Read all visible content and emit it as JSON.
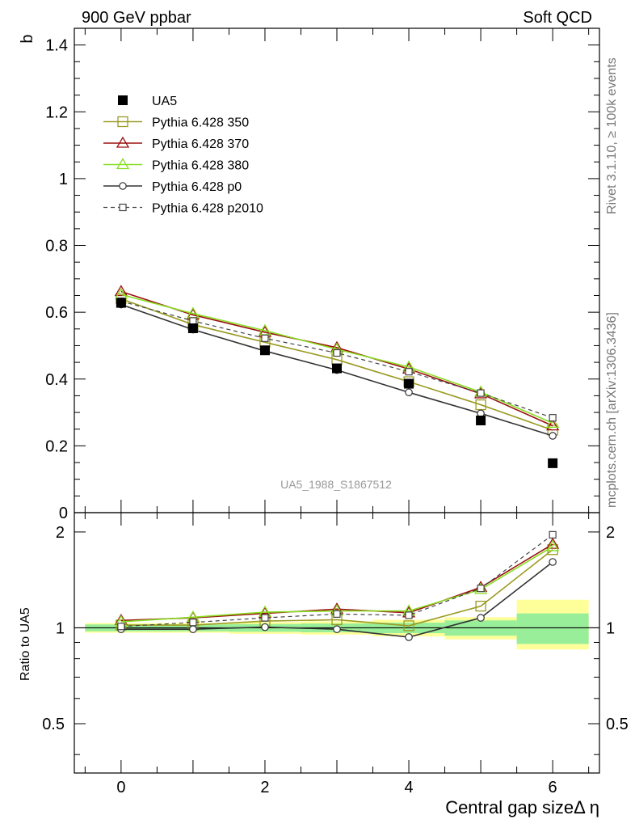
{
  "header": {
    "left": "900 GeV ppbar",
    "right": "Soft QCD"
  },
  "side": {
    "rivet": "Rivet 3.1.10, ≥ 100k events",
    "source": "mcplots.cern.ch [arXiv:1306.3436]"
  },
  "chart_data": [
    {
      "type": "line",
      "panel": "main",
      "ylabel": "b",
      "xlabel": "Central gap sizeΔ η",
      "watermark": "UA5_1988_S1867512",
      "xlim": [
        -0.65,
        6.65
      ],
      "ylim": [
        0,
        1.45
      ],
      "yticks": [
        0,
        0.2,
        0.4,
        0.6,
        0.8,
        1,
        1.2,
        1.4
      ],
      "ytick_labels": [
        "0",
        "0.2",
        "0.4",
        "0.6",
        "0.8",
        "1",
        "1.2",
        "1.4"
      ],
      "x": [
        0,
        1,
        2,
        3,
        4,
        5,
        6
      ],
      "legend_position": "top-left",
      "series": [
        {
          "name": "UA5",
          "color": "#000000",
          "marker": "filled-square",
          "values": [
            0.628,
            0.552,
            0.486,
            0.432,
            0.386,
            0.276,
            0.148
          ]
        },
        {
          "name": "Pythia 6.428 350",
          "color": "#9a9a22",
          "marker": "open-square",
          "values": [
            0.64,
            0.563,
            0.51,
            0.458,
            0.392,
            0.323,
            0.247
          ]
        },
        {
          "name": "Pythia 6.428 370",
          "color": "#9b1010",
          "marker": "open-triangle",
          "values": [
            0.662,
            0.592,
            0.54,
            0.494,
            0.43,
            0.356,
            0.26
          ]
        },
        {
          "name": "Pythia 6.428 380",
          "color": "#88dd22",
          "marker": "open-triangle",
          "values": [
            0.653,
            0.596,
            0.545,
            0.489,
            0.436,
            0.361,
            0.268
          ]
        },
        {
          "name": "Pythia 6.428 p0",
          "color": "#333333",
          "marker": "open-circle",
          "values": [
            0.623,
            0.548,
            0.484,
            0.427,
            0.36,
            0.297,
            0.23
          ]
        },
        {
          "name": "Pythia 6.428 p2010",
          "color": "#444444",
          "marker": "open-square-dashed",
          "values": [
            0.633,
            0.574,
            0.522,
            0.478,
            0.422,
            0.358,
            0.284
          ]
        }
      ]
    },
    {
      "type": "line",
      "panel": "ratio",
      "ylabel": "Ratio to UA5",
      "xlabel": "Central gap sizeΔ η",
      "xlim": [
        -0.65,
        6.65
      ],
      "ylim": [
        0.35,
        2.3
      ],
      "yticks": [
        0.5,
        1,
        2
      ],
      "ytick_labels": [
        "0.5",
        "1",
        "2"
      ],
      "xticks": [
        0,
        2,
        4,
        6
      ],
      "xtick_labels": [
        "0",
        "2",
        "4",
        "6"
      ],
      "x": [
        0,
        1,
        2,
        3,
        4,
        5,
        6
      ],
      "bands": {
        "stat_color": "#99ee99",
        "total_color": "#ffff99",
        "stat": [
          [
            0.975,
            1.025
          ],
          [
            0.975,
            1.025
          ],
          [
            0.972,
            1.028
          ],
          [
            0.968,
            1.032
          ],
          [
            0.962,
            1.038
          ],
          [
            0.945,
            1.055
          ],
          [
            0.89,
            1.11
          ]
        ],
        "total": [
          [
            0.965,
            1.035
          ],
          [
            0.965,
            1.035
          ],
          [
            0.958,
            1.042
          ],
          [
            0.952,
            1.048
          ],
          [
            0.94,
            1.06
          ],
          [
            0.92,
            1.08
          ],
          [
            0.855,
            1.225
          ]
        ]
      },
      "series": [
        {
          "name": "Pythia 6.428 350",
          "color": "#9a9a22",
          "marker": "open-square",
          "values": [
            1.02,
            1.02,
            1.05,
            1.06,
            1.015,
            1.17,
            1.76
          ]
        },
        {
          "name": "Pythia 6.428 370",
          "color": "#9b1010",
          "marker": "open-triangle",
          "values": [
            1.055,
            1.075,
            1.11,
            1.145,
            1.115,
            1.34,
            1.83
          ]
        },
        {
          "name": "Pythia 6.428 380",
          "color": "#88dd22",
          "marker": "open-triangle",
          "values": [
            1.045,
            1.08,
            1.12,
            1.13,
            1.13,
            1.32,
            1.8
          ]
        },
        {
          "name": "Pythia 6.428 p0",
          "color": "#333333",
          "marker": "open-circle",
          "values": [
            0.99,
            0.99,
            1.005,
            0.99,
            0.935,
            1.075,
            1.61
          ]
        },
        {
          "name": "Pythia 6.428 p2010",
          "color": "#444444",
          "marker": "open-square-dashed",
          "values": [
            1.01,
            1.04,
            1.075,
            1.105,
            1.095,
            1.33,
            1.96
          ]
        }
      ]
    }
  ]
}
